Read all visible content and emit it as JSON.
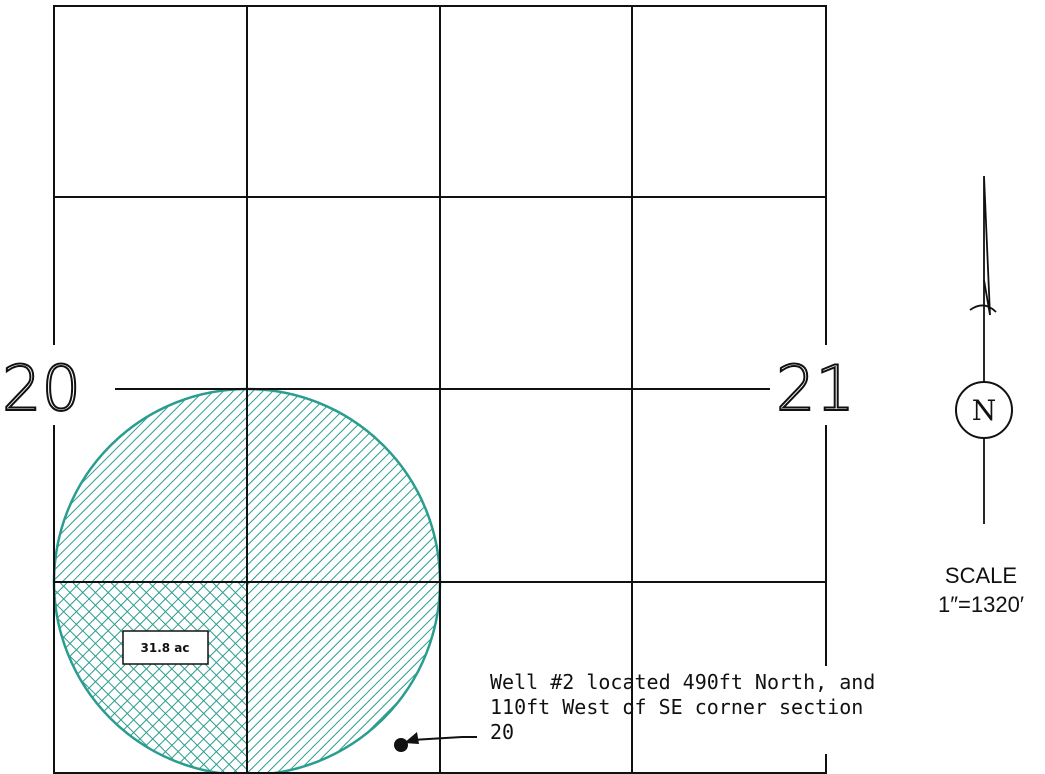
{
  "sections": {
    "left_number": "20",
    "right_number": "21"
  },
  "acreage_label": "31.8 ac",
  "well_note": {
    "line1": "Well #2 located 490ft North, and",
    "line2": "110ft West of SE corner section",
    "line3": "20"
  },
  "north_arrow": {
    "letter": "N"
  },
  "scale": {
    "label": "SCALE",
    "value": "1″=1320′"
  },
  "colors": {
    "line": "#111111",
    "hatch": "#2a9d8f",
    "circle": "#2a9d8f"
  }
}
